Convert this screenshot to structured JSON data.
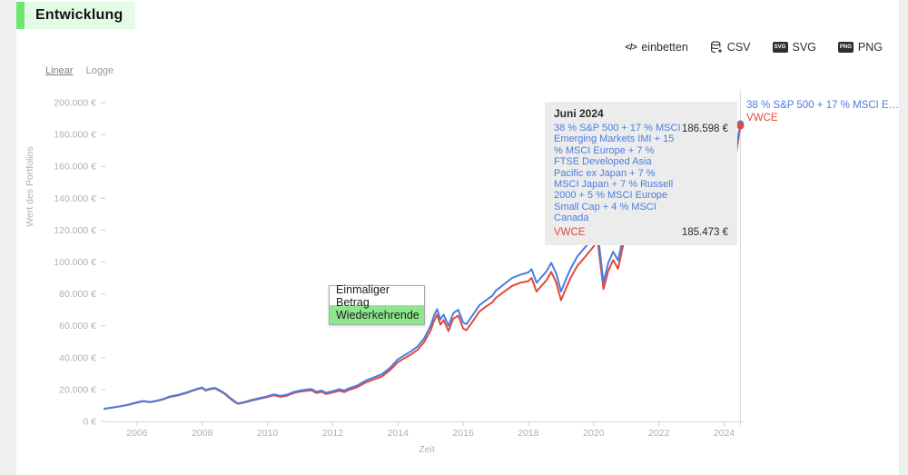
{
  "page": {
    "title": "Entwicklung"
  },
  "toolbar": {
    "embed": {
      "icon": "</>",
      "label": "einbetten"
    },
    "csv": {
      "label": "CSV"
    },
    "svg": {
      "badge": "SVG",
      "label": "SVG"
    },
    "png": {
      "badge": "PNG",
      "label": "PNG"
    }
  },
  "scale_toggle": {
    "linear": "Linear",
    "log": "Logge"
  },
  "dropdown": {
    "items": [
      {
        "label": "Einmaliger Betrag",
        "selected": false
      },
      {
        "label": "Wiederkehrende",
        "selected": true
      }
    ]
  },
  "hover_tooltip": {
    "title": "Juni 2024",
    "rows": [
      {
        "name": "38 % S&P 500 + 17 % MSCI Emerging Markets IMI + 15 % MSCI Europe + 7 % FTSE Developed Asia Pacific ex Japan + 7 % MSCI Japan + 7 % Russell 2000 + 5 % MSCI Europe Small Cap + 4 % MSCI Canada",
        "value": "186.598 €"
      },
      {
        "name": "VWCE",
        "value": "185.473 €"
      }
    ]
  },
  "edge_legend": {
    "series1": "38 % S&P 500 + 17 % MSCI E…",
    "series2": "VWCE"
  },
  "colors": {
    "series1": "#4a7de1",
    "series2": "#e2483c",
    "accent_green": "#6fe76f",
    "title_bg": "#e6fbe6",
    "menu_green": "#8ee78e",
    "tooltip_bg": "#ececec",
    "axis_text": "#b0b0b0",
    "grid": "#d9d9d9"
  },
  "chart_data": {
    "type": "line",
    "title": "Entwicklung",
    "xlabel": "Zeit",
    "ylabel": "Wert des Portfolios",
    "xlim": [
      2005.0,
      2024.6
    ],
    "ylim": [
      0,
      200000
    ],
    "grid": false,
    "legend_position": "right",
    "x_ticks": [
      2006,
      2008,
      2010,
      2012,
      2014,
      2016,
      2018,
      2020,
      2022,
      2024
    ],
    "y_ticks": [
      {
        "value": 0,
        "label": "0 €"
      },
      {
        "value": 20000,
        "label": "20.000 €"
      },
      {
        "value": 40000,
        "label": "40.000 €"
      },
      {
        "value": 60000,
        "label": "60.000 €"
      },
      {
        "value": 80000,
        "label": "80.000 €"
      },
      {
        "value": 100000,
        "label": "100.000 €"
      },
      {
        "value": 120000,
        "label": "120.000 €"
      },
      {
        "value": 140000,
        "label": "140.000 €"
      },
      {
        "value": 160000,
        "label": "160.000 €"
      },
      {
        "value": 180000,
        "label": "180.000 €"
      },
      {
        "value": 200000,
        "label": "200.000 €"
      }
    ],
    "hover": {
      "x": 2024.5,
      "label": "Juni 2024"
    },
    "x": [
      2005.0,
      2005.25,
      2005.5,
      2005.75,
      2006.0,
      2006.2,
      2006.4,
      2006.6,
      2006.8,
      2007.0,
      2007.25,
      2007.5,
      2007.7,
      2007.85,
      2008.0,
      2008.1,
      2008.25,
      2008.4,
      2008.55,
      2008.7,
      2008.85,
      2009.0,
      2009.1,
      2009.3,
      2009.5,
      2009.75,
      2010.0,
      2010.2,
      2010.4,
      2010.6,
      2010.8,
      2011.0,
      2011.2,
      2011.35,
      2011.5,
      2011.65,
      2011.8,
      2012.0,
      2012.2,
      2012.35,
      2012.5,
      2012.75,
      2013.0,
      2013.25,
      2013.5,
      2013.75,
      2014.0,
      2014.2,
      2014.4,
      2014.6,
      2014.8,
      2015.0,
      2015.1,
      2015.2,
      2015.3,
      2015.4,
      2015.55,
      2015.7,
      2015.85,
      2016.0,
      2016.1,
      2016.3,
      2016.5,
      2016.7,
      2016.9,
      2017.0,
      2017.25,
      2017.5,
      2017.75,
      2018.0,
      2018.1,
      2018.25,
      2018.4,
      2018.55,
      2018.7,
      2018.85,
      2019.0,
      2019.15,
      2019.3,
      2019.5,
      2019.75,
      2020.0,
      2020.12,
      2020.3,
      2020.45,
      2020.6,
      2020.75,
      2020.9,
      2021.0,
      2021.1,
      2021.2,
      2021.4,
      2021.6,
      2021.8,
      2022.0,
      2022.2,
      2022.4,
      2022.6,
      2022.8,
      2023.0,
      2023.2,
      2023.4,
      2023.6,
      2023.8,
      2024.0,
      2024.1,
      2024.2,
      2024.3,
      2024.38,
      2024.45,
      2024.5
    ],
    "series": [
      {
        "name": "38 % S&P 500 + 17 % MSCI Emerging Markets IMI + 15 % MSCI Europe + 7 % FTSE Developed Asia Pacific ex Japan + 7 % MSCI Japan + 7 % Russell 2000 + 5 % MSCI Europe Small Cap + 4 % MSCI Canada",
        "color": "#4a7de1",
        "end_value_label": "186.598 €",
        "values": [
          8000,
          8800,
          9600,
          10600,
          12000,
          12800,
          12200,
          13000,
          14000,
          15600,
          16600,
          18000,
          19500,
          20500,
          21300,
          19800,
          20600,
          21000,
          19400,
          17500,
          14800,
          12500,
          11300,
          12200,
          13400,
          14600,
          15800,
          17000,
          16000,
          16800,
          18400,
          19400,
          20000,
          20300,
          18600,
          19400,
          18000,
          19000,
          20200,
          19400,
          20800,
          22500,
          25500,
          27500,
          29500,
          33500,
          39000,
          41500,
          44000,
          47000,
          52000,
          60000,
          66000,
          70500,
          64000,
          67000,
          60000,
          68000,
          70000,
          62000,
          61000,
          67000,
          73000,
          76000,
          79000,
          82000,
          86000,
          90000,
          92000,
          93500,
          95500,
          87000,
          90500,
          94000,
          99500,
          93000,
          81500,
          89000,
          96000,
          103500,
          109500,
          115500,
          119500,
          87000,
          99500,
          106500,
          101000,
          115500,
          121000,
          126500,
          130500,
          135000,
          139000,
          143000,
          148000,
          141000,
          135000,
          129000,
          133000,
          138000,
          143000,
          148000,
          153000,
          159000,
          167000,
          173000,
          165500,
          178500,
          171500,
          181000,
          186598
        ]
      },
      {
        "name": "VWCE",
        "color": "#e2483c",
        "end_value_label": "185.473 €",
        "values": [
          7900,
          8700,
          9500,
          10450,
          11800,
          12600,
          12000,
          12800,
          13800,
          15300,
          16300,
          17700,
          19200,
          20200,
          20900,
          19400,
          20200,
          20600,
          19000,
          17100,
          14400,
          12100,
          11000,
          11900,
          13000,
          14200,
          15300,
          16400,
          15400,
          16200,
          17800,
          18700,
          19200,
          19500,
          17800,
          18600,
          17200,
          18100,
          19200,
          18400,
          19800,
          21400,
          24300,
          26200,
          28100,
          32000,
          37200,
          39600,
          42000,
          44900,
          49700,
          57000,
          62800,
          67000,
          60700,
          63600,
          56700,
          64500,
          66400,
          58300,
          57200,
          63000,
          69000,
          72000,
          74800,
          77500,
          81300,
          85000,
          87000,
          88000,
          90000,
          81500,
          85000,
          88500,
          93800,
          87300,
          76000,
          83300,
          90200,
          97600,
          103500,
          109800,
          113800,
          83000,
          94500,
          101200,
          95800,
          110000,
          115200,
          120600,
          124500,
          129200,
          133300,
          137400,
          142600,
          135800,
          130000,
          124200,
          128400,
          133600,
          138800,
          144000,
          149200,
          155400,
          163600,
          169800,
          162500,
          175800,
          169000,
          178800,
          185473
        ]
      }
    ]
  }
}
